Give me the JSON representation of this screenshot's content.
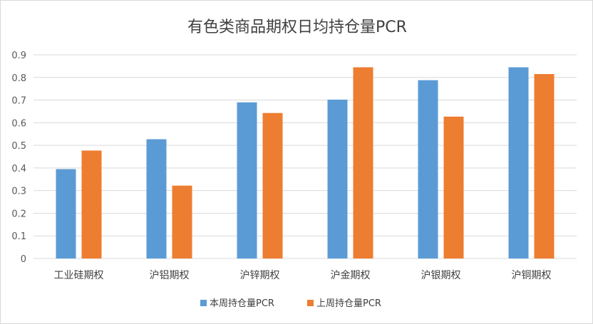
{
  "chart_data": {
    "type": "bar",
    "title": "有色类商品期权日均持仓量PCR",
    "categories": [
      "工业硅期权",
      "沪铝期权",
      "沪锌期权",
      "沪金期权",
      "沪银期权",
      "沪铜期权"
    ],
    "series": [
      {
        "name": "本周持仓量PCR",
        "color": "#5b9bd5",
        "values": [
          0.395,
          0.527,
          0.69,
          0.702,
          0.788,
          0.845
        ]
      },
      {
        "name": "上周持仓量PCR",
        "color": "#ed7d31",
        "values": [
          0.477,
          0.322,
          0.643,
          0.845,
          0.627,
          0.815
        ]
      }
    ],
    "ylim": [
      0,
      0.9
    ],
    "yticks": [
      "0",
      "0.1",
      "0.2",
      "0.3",
      "0.4",
      "0.5",
      "0.6",
      "0.7",
      "0.8",
      "0.9"
    ],
    "legend": "bottom",
    "grid": true
  }
}
